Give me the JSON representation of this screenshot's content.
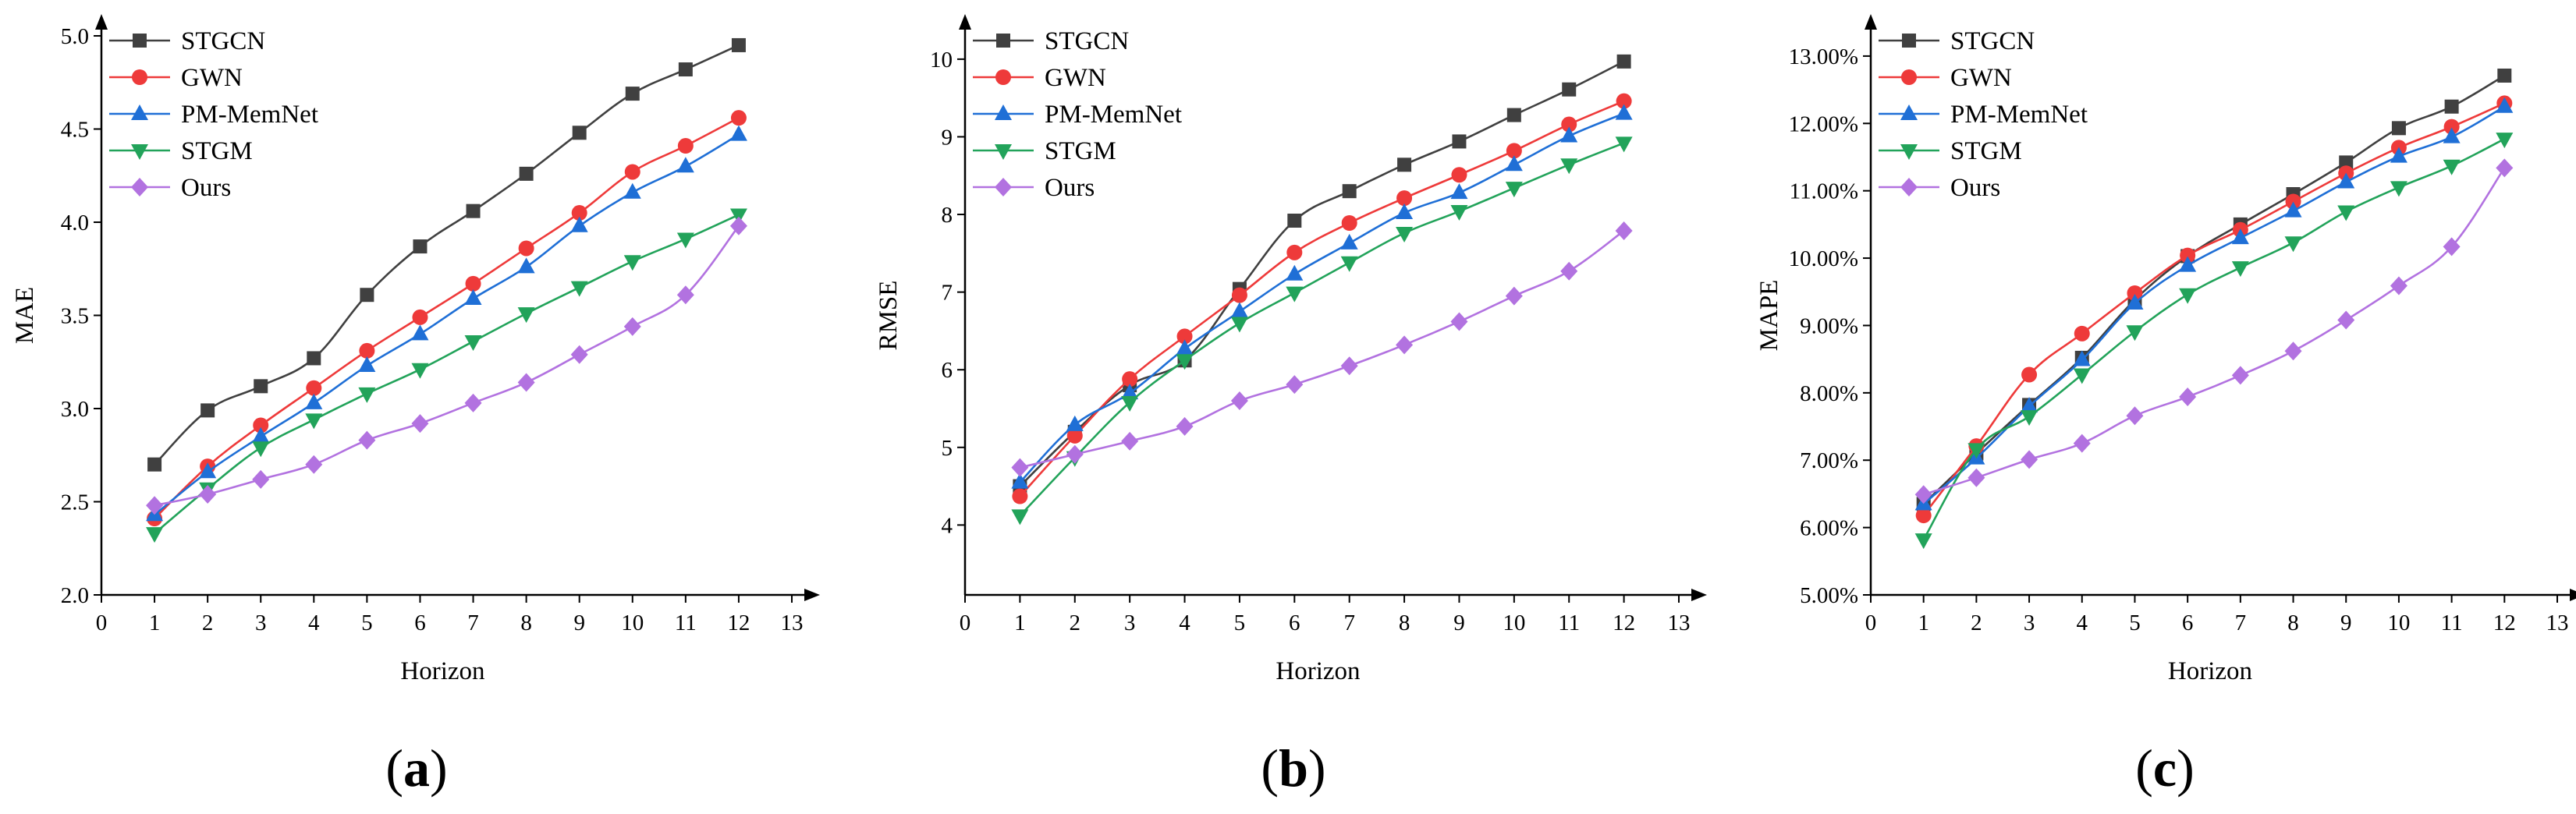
{
  "panels": [
    {
      "caption_letter": "a",
      "chart_data": {
        "type": "line",
        "title": "",
        "xlabel": "Horizon",
        "ylabel": "MAE",
        "xlim": [
          0,
          13
        ],
        "ylim": [
          2.0,
          5.0
        ],
        "xticks": [
          0,
          1,
          2,
          3,
          4,
          5,
          6,
          7,
          8,
          9,
          10,
          11,
          12,
          13
        ],
        "yticks": [
          2.0,
          2.5,
          3.0,
          3.5,
          4.0,
          4.5,
          5.0
        ],
        "ytick_labels": [
          "2.0",
          "2.5",
          "3.0",
          "3.5",
          "4.0",
          "4.5",
          "5.0"
        ],
        "x": [
          1,
          2,
          3,
          4,
          5,
          6,
          7,
          8,
          9,
          10,
          11,
          12
        ],
        "legend_position": "top-left",
        "series": [
          {
            "name": "STGCN",
            "color": "#404040",
            "marker": "square",
            "values": [
              2.7,
              2.99,
              3.12,
              3.27,
              3.61,
              3.87,
              4.06,
              4.26,
              4.48,
              4.69,
              4.82,
              4.95
            ]
          },
          {
            "name": "GWN",
            "color": "#ee3a3a",
            "marker": "circle",
            "values": [
              2.41,
              2.69,
              2.91,
              3.11,
              3.31,
              3.49,
              3.67,
              3.86,
              4.05,
              4.27,
              4.41,
              4.56
            ]
          },
          {
            "name": "PM-MemNet",
            "color": "#1f6fd6",
            "marker": "triangle-up",
            "values": [
              2.43,
              2.66,
              2.85,
              3.03,
              3.23,
              3.4,
              3.59,
              3.76,
              3.98,
              4.16,
              4.3,
              4.47
            ]
          },
          {
            "name": "STGM",
            "color": "#22a35a",
            "marker": "triangle-down",
            "values": [
              2.33,
              2.57,
              2.79,
              2.94,
              3.08,
              3.21,
              3.36,
              3.51,
              3.65,
              3.79,
              3.91,
              4.04
            ]
          },
          {
            "name": "Ours",
            "color": "#b272e0",
            "marker": "diamond",
            "values": [
              2.48,
              2.54,
              2.62,
              2.7,
              2.83,
              2.92,
              3.03,
              3.14,
              3.29,
              3.44,
              3.61,
              3.98
            ]
          }
        ]
      }
    },
    {
      "caption_letter": "b",
      "chart_data": {
        "type": "line",
        "title": "",
        "xlabel": "Horizon",
        "ylabel": "RMSE",
        "xlim": [
          0,
          13
        ],
        "ylim": [
          3.1,
          10.3
        ],
        "xticks": [
          0,
          1,
          2,
          3,
          4,
          5,
          6,
          7,
          8,
          9,
          10,
          11,
          12,
          13
        ],
        "yticks": [
          4,
          5,
          6,
          7,
          8,
          9,
          10
        ],
        "ytick_labels": [
          "4",
          "5",
          "6",
          "7",
          "8",
          "9",
          "10"
        ],
        "x": [
          1,
          2,
          3,
          4,
          5,
          6,
          7,
          8,
          9,
          10,
          11,
          12
        ],
        "legend_position": "top-left",
        "series": [
          {
            "name": "STGCN",
            "color": "#404040",
            "marker": "square",
            "values": [
              4.5,
              5.2,
              5.8,
              6.12,
              7.04,
              7.92,
              8.3,
              8.64,
              8.94,
              9.28,
              9.61,
              9.97
            ]
          },
          {
            "name": "GWN",
            "color": "#ee3a3a",
            "marker": "circle",
            "values": [
              4.37,
              5.15,
              5.88,
              6.43,
              6.96,
              7.51,
              7.89,
              8.21,
              8.51,
              8.82,
              9.16,
              9.46
            ]
          },
          {
            "name": "PM-MemNet",
            "color": "#1f6fd6",
            "marker": "triangle-up",
            "values": [
              4.55,
              5.29,
              5.7,
              6.27,
              6.75,
              7.23,
              7.63,
              8.02,
              8.28,
              8.64,
              9.01,
              9.3
            ]
          },
          {
            "name": "STGM",
            "color": "#22a35a",
            "marker": "triangle-down",
            "values": [
              4.12,
              4.87,
              5.58,
              6.12,
              6.6,
              6.99,
              7.38,
              7.76,
              8.04,
              8.34,
              8.64,
              8.92
            ]
          },
          {
            "name": "Ours",
            "color": "#b272e0",
            "marker": "diamond",
            "values": [
              4.74,
              4.91,
              5.08,
              5.27,
              5.6,
              5.81,
              6.05,
              6.32,
              6.62,
              6.95,
              7.27,
              7.79
            ]
          }
        ]
      }
    },
    {
      "caption_letter": "c",
      "chart_data": {
        "type": "line",
        "title": "",
        "xlabel": "Horizon",
        "ylabel": "MAPE",
        "xlim": [
          0,
          13
        ],
        "ylim": [
          5.0,
          13.3
        ],
        "xticks": [
          0,
          1,
          2,
          3,
          4,
          5,
          6,
          7,
          8,
          9,
          10,
          11,
          12,
          13
        ],
        "yticks": [
          5,
          6,
          7,
          8,
          9,
          10,
          11,
          12,
          13
        ],
        "ytick_labels": [
          "5.00%",
          "6.00%",
          "7.00%",
          "8.00%",
          "9.00%",
          "10.00%",
          "11.00%",
          "12.00%",
          "13.00%"
        ],
        "x": [
          1,
          2,
          3,
          4,
          5,
          6,
          7,
          8,
          9,
          10,
          11,
          12
        ],
        "legend_position": "top-left",
        "series": [
          {
            "name": "STGCN",
            "color": "#404040",
            "marker": "square",
            "values": [
              6.35,
              7.1,
              7.82,
              8.52,
              9.38,
              10.03,
              10.5,
              10.95,
              11.42,
              11.93,
              12.25,
              12.71
            ]
          },
          {
            "name": "GWN",
            "color": "#ee3a3a",
            "marker": "circle",
            "values": [
              6.18,
              7.21,
              8.27,
              8.88,
              9.48,
              10.04,
              10.42,
              10.84,
              11.26,
              11.64,
              11.95,
              12.3
            ]
          },
          {
            "name": "PM-MemNet",
            "color": "#1f6fd6",
            "marker": "triangle-up",
            "values": [
              6.35,
              7.03,
              7.8,
              8.49,
              9.33,
              9.89,
              10.3,
              10.7,
              11.13,
              11.51,
              11.8,
              12.25
            ]
          },
          {
            "name": "STGM",
            "color": "#22a35a",
            "marker": "triangle-down",
            "values": [
              5.82,
              7.16,
              7.65,
              8.27,
              8.91,
              9.46,
              9.86,
              10.23,
              10.69,
              11.05,
              11.37,
              11.77
            ]
          },
          {
            "name": "Ours",
            "color": "#b272e0",
            "marker": "diamond",
            "values": [
              6.49,
              6.74,
              7.01,
              7.25,
              7.66,
              7.94,
              8.26,
              8.62,
              9.08,
              9.59,
              10.17,
              11.34
            ]
          }
        ]
      }
    }
  ]
}
